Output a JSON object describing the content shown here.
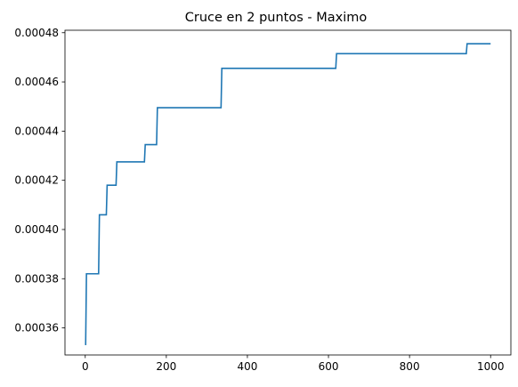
{
  "chart_data": {
    "type": "line",
    "title": "Cruce en 2 puntos - Maximo",
    "xlabel": "",
    "ylabel": "",
    "xlim": [
      -50,
      1050
    ],
    "ylim": [
      0.000349,
      0.000481
    ],
    "xticks": [
      0,
      200,
      400,
      600,
      800,
      1000
    ],
    "xtick_labels": [
      "0",
      "200",
      "400",
      "600",
      "800",
      "1000"
    ],
    "yticks": [
      0.00036,
      0.00038,
      0.0004,
      0.00042,
      0.00044,
      0.00046,
      0.00048
    ],
    "ytick_labels": [
      "0.00036",
      "0.00038",
      "0.00040",
      "0.00042",
      "0.00044",
      "0.00046",
      "0.00048"
    ],
    "grid": false,
    "line_style": "step",
    "series": [
      {
        "color": "#1f77b4",
        "x": [
          1,
          3,
          33,
          35,
          52,
          54,
          76,
          78,
          146,
          148,
          176,
          178,
          335,
          337,
          618,
          620,
          940,
          942,
          1000
        ],
        "y": [
          0.000353,
          0.000382,
          0.000382,
          0.000406,
          0.000406,
          0.000418,
          0.000418,
          0.0004275,
          0.0004275,
          0.0004345,
          0.0004345,
          0.0004495,
          0.0004495,
          0.0004655,
          0.0004655,
          0.0004715,
          0.0004715,
          0.0004755,
          0.0004755
        ]
      }
    ]
  }
}
